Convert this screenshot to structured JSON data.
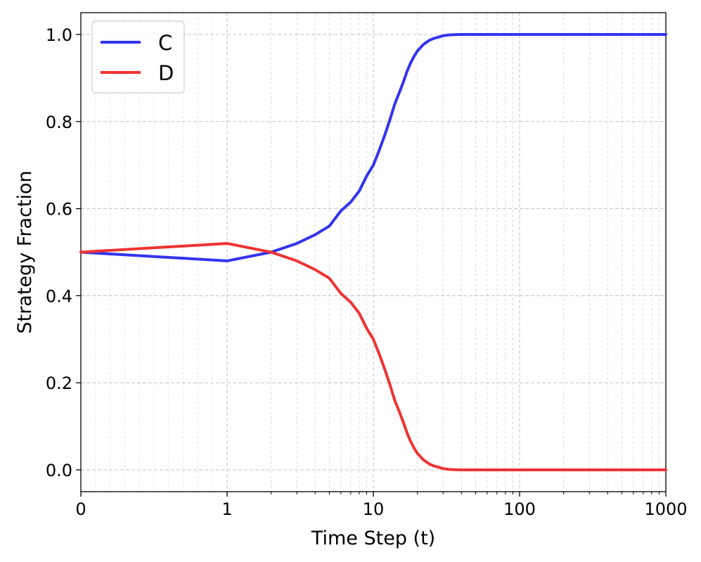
{
  "chart_data": {
    "type": "line",
    "xscale": "symlog",
    "xlabel": "Time Step (t)",
    "ylabel": "Strategy Fraction",
    "xlim": [
      0,
      1000
    ],
    "ylim": [
      -0.05,
      1.05
    ],
    "x_ticks": [
      {
        "value": 0,
        "label": "0"
      },
      {
        "value": 1,
        "label": "1"
      },
      {
        "value": 10,
        "label": "10"
      },
      {
        "value": 100,
        "label": "100"
      },
      {
        "value": 1000,
        "label": "1000"
      }
    ],
    "y_ticks": [
      {
        "value": 0.0,
        "label": "0.0"
      },
      {
        "value": 0.2,
        "label": "0.2"
      },
      {
        "value": 0.4,
        "label": "0.4"
      },
      {
        "value": 0.6,
        "label": "0.6"
      },
      {
        "value": 0.8,
        "label": "0.8"
      },
      {
        "value": 1.0,
        "label": "1.0"
      }
    ],
    "grid": true,
    "legend_position": "top-left",
    "x": [
      0,
      1,
      2,
      3,
      4,
      5,
      6,
      7,
      8,
      9,
      10,
      11,
      12,
      13,
      14,
      15,
      16,
      17,
      18,
      19,
      20,
      22,
      24,
      26,
      28,
      30,
      33,
      36,
      40,
      50,
      60,
      80,
      100,
      200,
      500,
      1000
    ],
    "series": [
      {
        "name": "C",
        "color": "#3333ee",
        "values": [
          0.5,
          0.48,
          0.5,
          0.52,
          0.54,
          0.56,
          0.595,
          0.615,
          0.64,
          0.675,
          0.7,
          0.735,
          0.77,
          0.805,
          0.84,
          0.865,
          0.89,
          0.915,
          0.935,
          0.95,
          0.962,
          0.977,
          0.986,
          0.991,
          0.994,
          0.997,
          0.999,
          0.9995,
          1.0,
          1.0,
          1.0,
          1.0,
          1.0,
          1.0,
          1.0,
          1.0
        ]
      },
      {
        "name": "D",
        "color": "#ee3333",
        "values": [
          0.5,
          0.52,
          0.5,
          0.48,
          0.46,
          0.44,
          0.405,
          0.385,
          0.36,
          0.325,
          0.3,
          0.265,
          0.23,
          0.195,
          0.16,
          0.135,
          0.11,
          0.085,
          0.065,
          0.05,
          0.038,
          0.023,
          0.014,
          0.009,
          0.006,
          0.003,
          0.001,
          0.0005,
          0.0,
          0.0,
          0.0,
          0.0,
          0.0,
          0.0,
          0.0,
          0.0
        ]
      }
    ]
  }
}
